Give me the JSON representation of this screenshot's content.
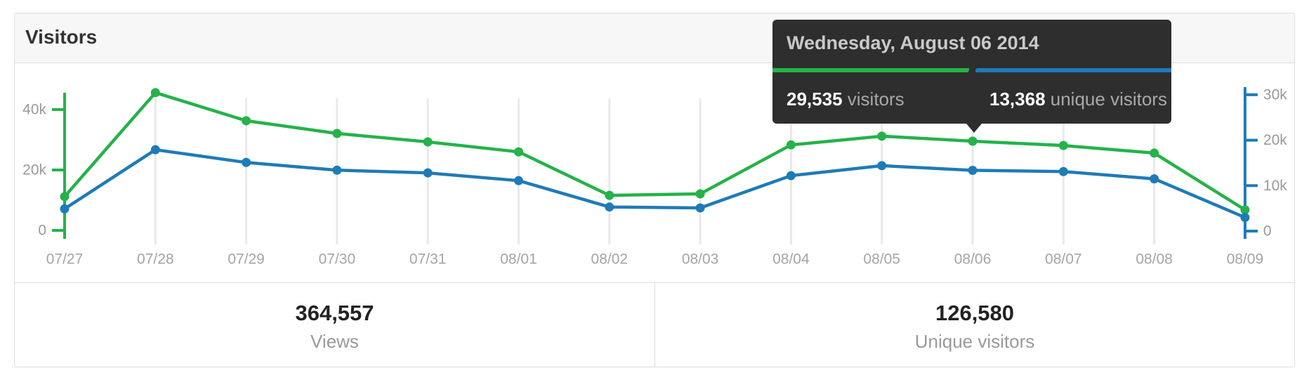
{
  "card": {
    "title": "Visitors"
  },
  "tooltip": {
    "date": "Wednesday, August 06 2014",
    "visitors_value": "29,535",
    "visitors_label": "visitors",
    "unique_value": "13,368",
    "unique_label": "unique visitors"
  },
  "stats": {
    "views": {
      "value": "364,557",
      "label": "Views"
    },
    "unique": {
      "value": "126,580",
      "label": "Unique visitors"
    }
  },
  "colors": {
    "views_green": "#25b24a",
    "unique_blue": "#1e7bb7",
    "tooltip_bg": "#2e2e2e",
    "grid_line": "#e9e9e9",
    "axis_label": "#9a9a9a",
    "date_label": "#a5a5a5"
  },
  "chart_data": {
    "type": "line",
    "title": "Visitors",
    "categories": [
      "07/27",
      "07/28",
      "07/29",
      "07/30",
      "07/31",
      "08/01",
      "08/02",
      "08/03",
      "08/04",
      "08/05",
      "08/06",
      "08/07",
      "08/08",
      "08/09"
    ],
    "series": [
      {
        "name": "visitors",
        "axis": "left",
        "color": "#25b24a",
        "values": [
          11200,
          45600,
          36300,
          32100,
          29300,
          26000,
          11600,
          12100,
          28300,
          31200,
          29535,
          28100,
          25600,
          6800
        ]
      },
      {
        "name": "unique visitors",
        "axis": "right",
        "color": "#1e7bb7",
        "values": [
          4900,
          17900,
          15100,
          13400,
          12800,
          11100,
          5300,
          5100,
          12200,
          14400,
          13368,
          13100,
          11500,
          3000
        ]
      }
    ],
    "left_axis": {
      "color": "#25b24a",
      "range": [
        0,
        46000
      ],
      "ticks": [
        {
          "value": 0,
          "label": "0"
        },
        {
          "value": 20000,
          "label": "20k"
        },
        {
          "value": 40000,
          "label": "40k"
        }
      ]
    },
    "right_axis": {
      "color": "#1e7bb7",
      "range": [
        0,
        31700
      ],
      "ticks": [
        {
          "value": 0,
          "label": "0"
        },
        {
          "value": 10000,
          "label": "10k"
        },
        {
          "value": 20000,
          "label": "20k"
        },
        {
          "value": 30000,
          "label": "30k"
        }
      ]
    },
    "grid": "vertical-only",
    "legend": "none",
    "highlight": {
      "category": "08/06",
      "visitors": 29535,
      "unique_visitors": 13368
    }
  }
}
